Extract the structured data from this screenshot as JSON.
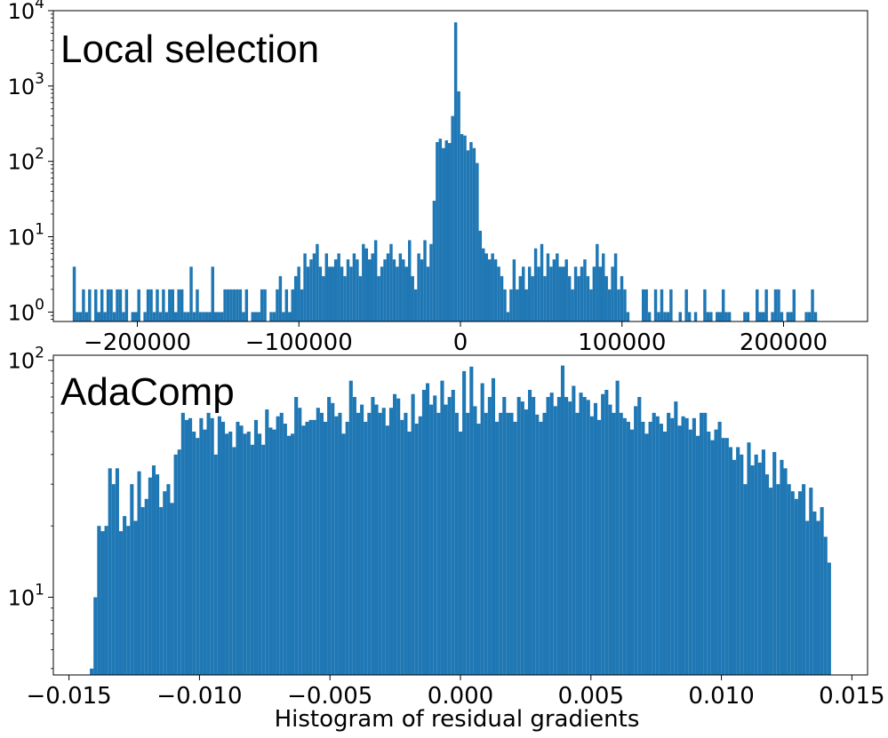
{
  "xlabel": "Histogram of residual gradients",
  "chart_data": [
    {
      "type": "bar",
      "title": "Local selection",
      "yscale": "log",
      "ylim": [
        0.75,
        10000
      ],
      "xlim": [
        -252000,
        252000
      ],
      "bin_range": [
        -240000,
        236000
      ],
      "color": "#1f77b4",
      "grid": false,
      "x_ticks": [
        {
          "value": -200000,
          "label": "−200000"
        },
        {
          "value": -100000,
          "label": "−100000"
        },
        {
          "value": 0,
          "label": "0"
        },
        {
          "value": 100000,
          "label": "100000"
        },
        {
          "value": 200000,
          "label": "200000"
        }
      ],
      "y_ticks": [
        {
          "value": 1,
          "base": "10",
          "exp": "0"
        },
        {
          "value": 10,
          "base": "10",
          "exp": "1"
        },
        {
          "value": 100,
          "base": "10",
          "exp": "2"
        },
        {
          "value": 1000,
          "base": "10",
          "exp": "3"
        },
        {
          "value": 10000,
          "base": "10",
          "exp": "4"
        }
      ],
      "values": [
        4,
        1,
        1,
        2,
        1,
        2,
        0,
        2,
        1,
        2,
        1,
        2,
        2,
        1,
        2,
        2,
        1,
        2,
        0,
        1,
        1,
        2,
        0,
        1,
        2,
        2,
        1,
        2,
        1,
        2,
        1,
        2,
        2,
        1,
        2,
        2,
        1,
        1,
        4,
        1,
        2,
        1,
        1,
        1,
        1,
        4,
        1,
        1,
        1,
        2,
        2,
        2,
        2,
        2,
        2,
        1,
        2,
        0,
        1,
        1,
        1,
        2,
        2,
        0,
        1,
        1,
        2,
        3,
        1,
        2,
        1,
        2,
        3,
        4,
        2,
        6,
        4,
        5,
        6,
        8,
        4,
        3,
        6,
        4,
        4,
        5,
        6,
        4,
        3,
        5,
        4,
        6,
        5,
        3,
        8,
        7,
        5,
        6,
        9,
        3,
        4,
        5,
        6,
        8,
        5,
        4,
        6,
        5,
        4,
        9,
        3,
        2,
        6,
        5,
        9,
        4,
        8,
        30,
        180,
        200,
        150,
        190,
        175,
        400,
        7000,
        850,
        230,
        220,
        140,
        180,
        150,
        95,
        12,
        7,
        6,
        5,
        6,
        5,
        4,
        3,
        2,
        1,
        2,
        5,
        2,
        3,
        4,
        2,
        4,
        3,
        7,
        4,
        8,
        3,
        6,
        4,
        5,
        6,
        4,
        4,
        5,
        3,
        2,
        4,
        3,
        4,
        5,
        3,
        2,
        4,
        8,
        4,
        6,
        3,
        2,
        4,
        6,
        2,
        3,
        2,
        1,
        0,
        0,
        0,
        0,
        2,
        2,
        1,
        0,
        2,
        1,
        2,
        1,
        1,
        2,
        0,
        0,
        1,
        0,
        2,
        1,
        0,
        1,
        0,
        0,
        2,
        1,
        1,
        0,
        1,
        1,
        2,
        1,
        1,
        0,
        0,
        0,
        0,
        1,
        1,
        0,
        0,
        2,
        1,
        1,
        2,
        0,
        1,
        2,
        2,
        1,
        0,
        1,
        1,
        2,
        0,
        0,
        0,
        1,
        1,
        2,
        1,
        0,
        0,
        0,
        0,
        0,
        0,
        0,
        0
      ]
    },
    {
      "type": "bar",
      "title": "AdaComp",
      "yscale": "log",
      "ylim": [
        4.7,
        105
      ],
      "xlim": [
        -0.0156,
        0.0156
      ],
      "bin_range": [
        -0.0142,
        0.0142
      ],
      "color": "#1f77b4",
      "grid": false,
      "x_ticks": [
        {
          "value": -0.015,
          "label": "−0.015"
        },
        {
          "value": -0.01,
          "label": "−0.010"
        },
        {
          "value": -0.005,
          "label": "−0.005"
        },
        {
          "value": 0,
          "label": "0.000"
        },
        {
          "value": 0.005,
          "label": "0.005"
        },
        {
          "value": 0.01,
          "label": "0.010"
        },
        {
          "value": 0.015,
          "label": "0.015"
        }
      ],
      "y_ticks": [
        {
          "value": 10,
          "base": "10",
          "exp": "1"
        },
        {
          "value": 100,
          "base": "10",
          "exp": "2"
        }
      ],
      "values": [
        5,
        10,
        20,
        19,
        20,
        35,
        30,
        35,
        19,
        22,
        20,
        30,
        21,
        34,
        24,
        26,
        32,
        36,
        33,
        24,
        28,
        30,
        25,
        40,
        42,
        60,
        56,
        57,
        50,
        47,
        57,
        51,
        60,
        57,
        40,
        58,
        55,
        49,
        50,
        43,
        55,
        53,
        49,
        50,
        44,
        56,
        49,
        44,
        62,
        52,
        51,
        58,
        60,
        54,
        48,
        49,
        70,
        63,
        53,
        55,
        56,
        56,
        63,
        60,
        55,
        70,
        66,
        58,
        60,
        49,
        55,
        82,
        70,
        60,
        65,
        55,
        60,
        70,
        65,
        60,
        63,
        53,
        63,
        72,
        69,
        56,
        60,
        50,
        72,
        54,
        58,
        75,
        80,
        65,
        71,
        60,
        82,
        65,
        70,
        75,
        60,
        50,
        90,
        60,
        94,
        64,
        54,
        80,
        60,
        70,
        84,
        55,
        60,
        70,
        60,
        60,
        55,
        70,
        67,
        62,
        75,
        70,
        59,
        55,
        60,
        70,
        73,
        64,
        70,
        95,
        70,
        67,
        78,
        60,
        73,
        70,
        68,
        58,
        66,
        56,
        72,
        75,
        65,
        60,
        82,
        60,
        57,
        55,
        51,
        64,
        70,
        55,
        49,
        55,
        60,
        58,
        54,
        50,
        60,
        57,
        67,
        53,
        58,
        57,
        51,
        57,
        48,
        60,
        60,
        50,
        46,
        51,
        55,
        47,
        47,
        43,
        38,
        43,
        40,
        30,
        45,
        36,
        40,
        37,
        42,
        33,
        29,
        41,
        30,
        38,
        35,
        30,
        28,
        26,
        28,
        30,
        21,
        29,
        23,
        21,
        24,
        18,
        14
      ]
    }
  ]
}
